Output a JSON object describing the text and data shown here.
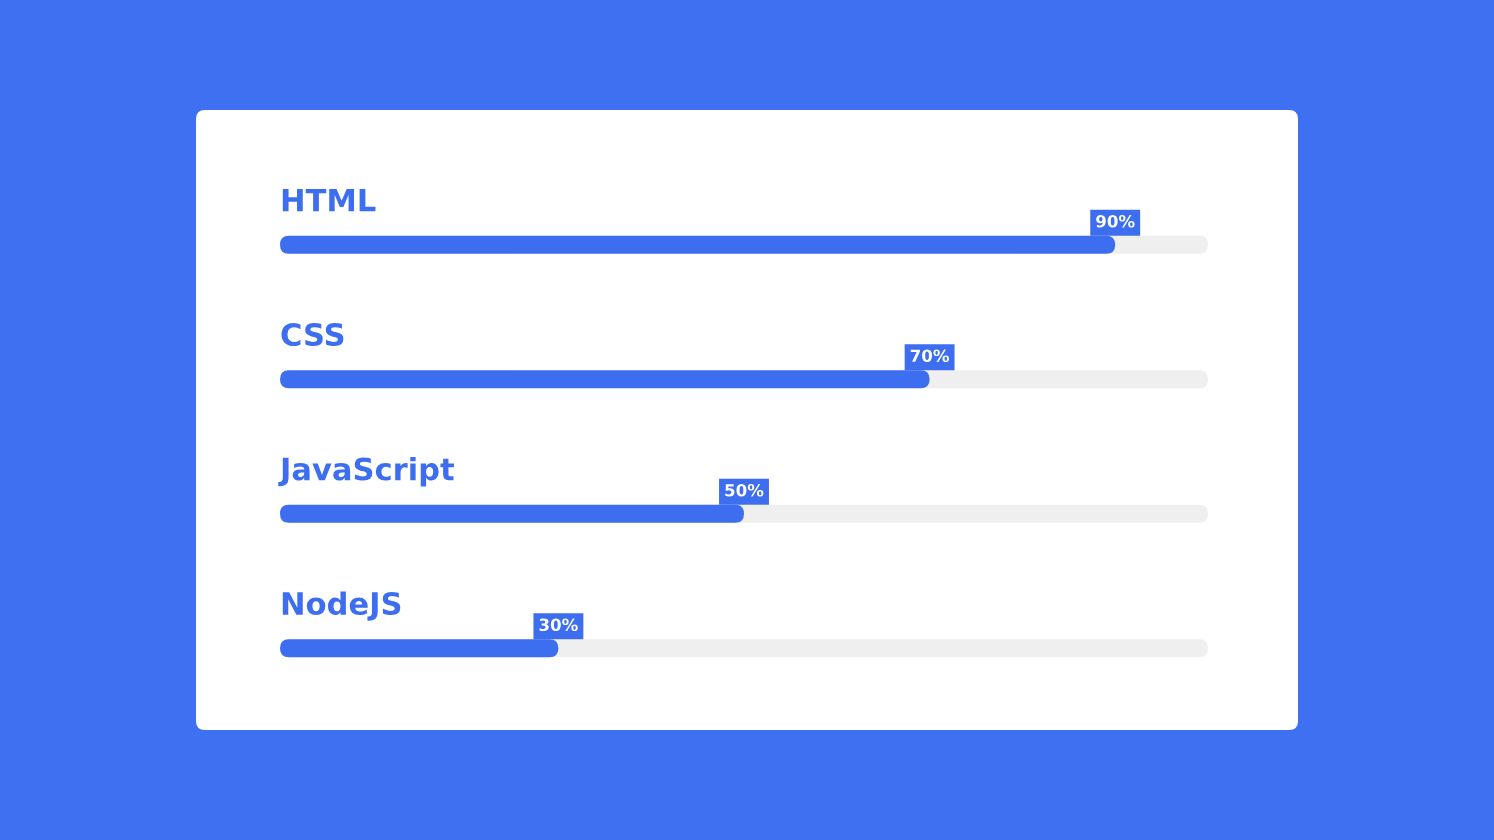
{
  "chart_data": {
    "type": "bar",
    "orientation": "horizontal",
    "categories": [
      "HTML",
      "CSS",
      "JavaScript",
      "NodeJS"
    ],
    "values": [
      90,
      70,
      50,
      30
    ],
    "value_labels": [
      "90%",
      "70%",
      "50%",
      "30%"
    ],
    "color": "#3d6ef0",
    "xlim": [
      0,
      100
    ],
    "tick_labels": "y"
  }
}
